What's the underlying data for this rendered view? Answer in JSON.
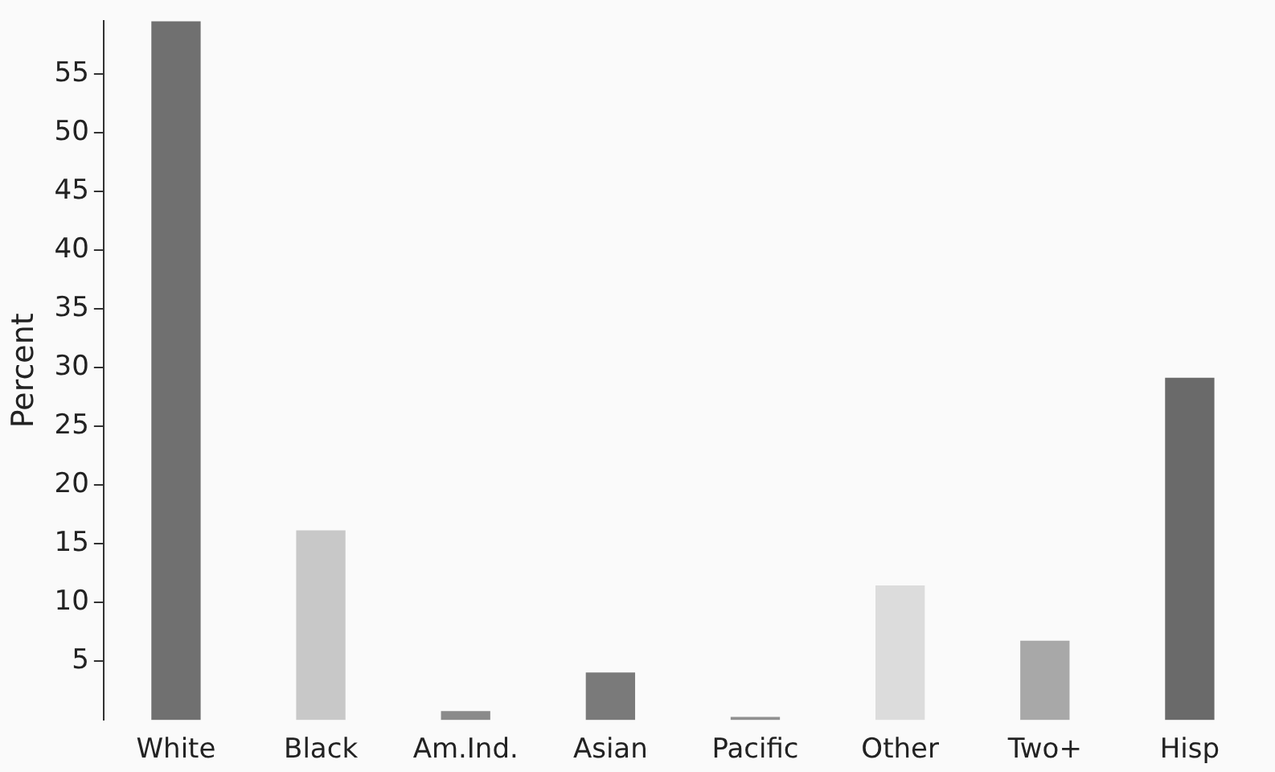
{
  "chart_data": {
    "type": "bar",
    "ylabel": "Percent",
    "categories": [
      "White",
      "Black",
      "Am.Ind.",
      "Asian",
      "Pacific",
      "Other",
      "Two+",
      "Hisp"
    ],
    "values": [
      59.5,
      16.1,
      0.7,
      4.0,
      0.2,
      11.4,
      6.7,
      29.1
    ],
    "colors": [
      "#707070",
      "#c8c8c8",
      "#8a8a8a",
      "#7a7a7a",
      "#909090",
      "#dcdcdc",
      "#a8a8a8",
      "#6a6a6a"
    ],
    "ylim": [
      0,
      59.5
    ],
    "yticks": [
      5,
      10,
      15,
      20,
      25,
      30,
      35,
      40,
      45,
      50,
      55
    ],
    "grid": false,
    "legend": false
  }
}
